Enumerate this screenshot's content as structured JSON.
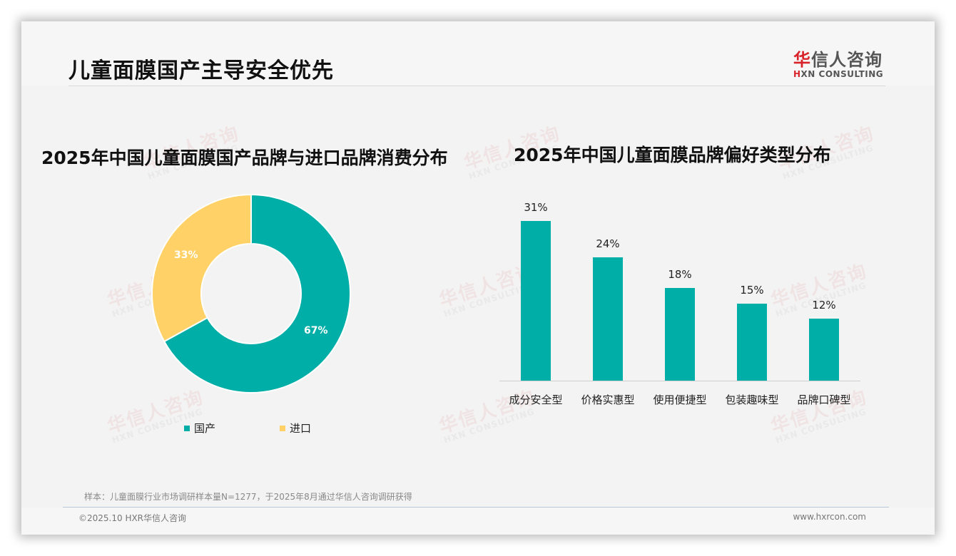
{
  "page": {
    "title": "儿童面膜国产主导安全优先"
  },
  "logo": {
    "cn_accent": "华",
    "cn_rest": "信人咨询",
    "en_accent": "H",
    "en_rest": "XN CONSULTING"
  },
  "watermark": {
    "cn": "华信人咨询",
    "en": "HXN CONSULTING"
  },
  "colors": {
    "teal": "#00aea8",
    "yellow": "#ffd166",
    "brand_red": "#d8232a"
  },
  "chart_data": [
    {
      "type": "pie",
      "variant": "donut",
      "title": "2025年中国儿童面膜国产品牌与进口品牌消费分布",
      "categories": [
        "国产",
        "进口"
      ],
      "values": [
        67,
        33
      ],
      "labels": [
        "67%",
        "33%"
      ],
      "colors": [
        "#00aea8",
        "#ffd166"
      ],
      "legend_position": "bottom"
    },
    {
      "type": "bar",
      "title": "2025年中国儿童面膜品牌偏好类型分布",
      "categories": [
        "成分安全型",
        "价格实惠型",
        "使用便捷型",
        "包装趣味型",
        "品牌口碑型"
      ],
      "values": [
        31,
        24,
        18,
        15,
        12
      ],
      "labels": [
        "31%",
        "24%",
        "18%",
        "15%",
        "12%"
      ],
      "xlabel": "",
      "ylabel": "",
      "ylim": [
        0,
        35
      ],
      "grid": false,
      "color": "#00aea8"
    }
  ],
  "footer": {
    "sample_note": "样本：儿童面膜行业市场调研样本量N=1277，于2025年8月通过华信人咨询调研获得",
    "copyright": "©2025.10 HXR华信人咨询",
    "website": "www.hxrcon.com"
  }
}
